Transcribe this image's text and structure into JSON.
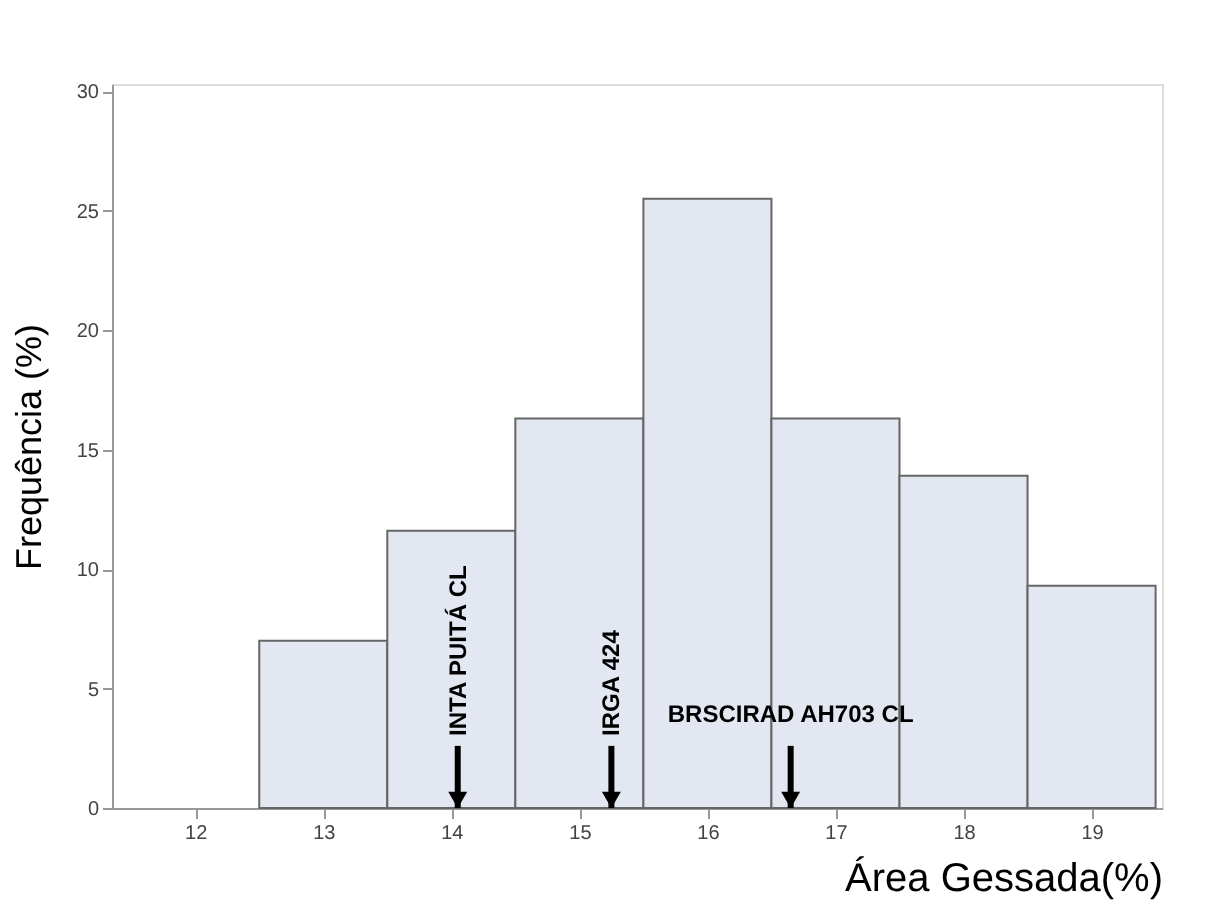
{
  "chart_data": {
    "type": "histogram",
    "xlabel": "Área Gessada(%)",
    "ylabel": "Frequência (%)",
    "bins": [
      12.5,
      13.5,
      14.5,
      15.5,
      16.5,
      17.5,
      18.5,
      19.5
    ],
    "values": [
      7,
      11.6,
      16.3,
      25.5,
      16.3,
      13.9,
      9.3
    ],
    "color": "#e3e7f1",
    "xlim": [
      11.35,
      19.55
    ],
    "xticks": [
      12,
      13,
      14,
      15,
      16,
      17,
      18,
      19
    ],
    "ylim": [
      0,
      30.3
    ],
    "yticks": [
      0,
      5,
      10,
      15,
      20,
      25,
      30
    ],
    "grid": false,
    "annotations": [
      {
        "text": "INTA PUITÁ CL",
        "x": 14.05,
        "y": 0
      },
      {
        "text": "IRGA 424",
        "x": 15.25,
        "y": 0
      },
      {
        "text": "BRSCIRAD AH703 CL",
        "x": 16.65,
        "y": 0
      }
    ]
  }
}
